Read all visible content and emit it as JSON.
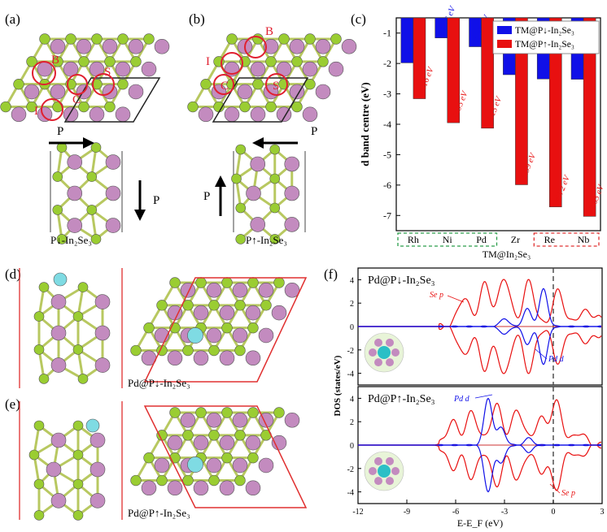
{
  "panels": {
    "a": {
      "label": "(a)",
      "dir_label": "P",
      "caption": "P↓-In₂Se₃",
      "sites": {
        "B": "B",
        "S": "S",
        "C": "C",
        "I": "I"
      }
    },
    "b": {
      "label": "(b)",
      "dir_label": "P",
      "caption": "P↑-In₂Se₃",
      "sites": {
        "B": "B",
        "S": "S",
        "C": "C",
        "I": "I"
      }
    },
    "c": {
      "label": "(c)"
    },
    "d": {
      "label": "(d)",
      "caption": "Pd@P↓-In₂Se₃"
    },
    "e": {
      "label": "(e)",
      "caption": "Pd@P↑-In₂Se₃"
    },
    "f": {
      "label": "(f)"
    }
  },
  "colors": {
    "se_atom": "#9acd32",
    "in_atom": "#c38bbf",
    "pd_atom": "#7fdbe3",
    "cell_line": "#e03030",
    "series_down": "#1010e8",
    "series_up": "#e81010",
    "site_circle": "#e02030"
  },
  "chart_data": [
    {
      "type": "bar",
      "panel": "c",
      "categories": [
        "Rh",
        "Ni",
        "Pd",
        "Zr",
        "Re",
        "Nb"
      ],
      "series": [
        {
          "name": "TM@P↓-In₂Se₃",
          "values": [
            -1.98,
            -1.16,
            -1.45,
            -2.37,
            -2.51,
            -2.52
          ],
          "labels": [
            "-1.98 eV",
            "-1.16 eV",
            "-1.45 eV",
            "-2.37 eV",
            "-2.51 eV",
            "-2.52 eV"
          ]
        },
        {
          "name": "TM@P↑-In₂Se₃",
          "values": [
            -3.16,
            -3.95,
            -4.13,
            -5.99,
            -6.72,
            -7.03
          ],
          "labels": [
            "-3.16 eV",
            "-3.95 eV",
            "-4.13 eV",
            "-5.99 eV",
            "-6.72 eV",
            "-7.03 eV"
          ]
        }
      ],
      "ylabel": "d band centre (eV)",
      "xlabel": "TM@In₂Se₃",
      "ylim": [
        -7.5,
        -0.5
      ],
      "yticks": [
        "-1",
        "-2",
        "-3",
        "-4",
        "-5",
        "-6",
        "-7"
      ],
      "legend": "top-right",
      "groups": [
        {
          "members": [
            "Rh",
            "Ni",
            "Pd"
          ],
          "color": "#2a9d4a"
        },
        {
          "members": [
            "Re",
            "Nb"
          ],
          "color": "#e03030"
        }
      ]
    },
    {
      "type": "line",
      "panel": "f",
      "subplots": [
        {
          "title": "Pd@P↓-In₂Se₃",
          "annotations": [
            "Se p",
            "Pd d"
          ]
        },
        {
          "title": "Pd@P↑-In₂Se₃",
          "annotations": [
            "Pd d",
            "Se p"
          ]
        }
      ],
      "series": [
        {
          "name": "Se p",
          "color": "#e81010"
        },
        {
          "name": "Pd d",
          "color": "#1010e8"
        }
      ],
      "xlabel": "E-E_F (eV)",
      "ylabel": "DOS (states/eV)",
      "xlim": [
        -12,
        3
      ],
      "xticks": [
        "-12",
        "-9",
        "-6",
        "-3",
        "0",
        "3"
      ],
      "ylim": [
        -5,
        5
      ],
      "yticks": [
        "4",
        "2",
        "0",
        "-2",
        "-4"
      ],
      "fermi_level": 0
    }
  ]
}
